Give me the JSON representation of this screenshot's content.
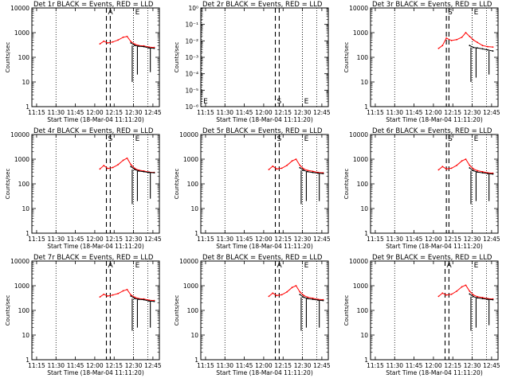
{
  "figure": {
    "xlabel": "Start Time (18-Mar-04 11:11:20)",
    "ylabel": "Counts/sec",
    "series": [
      {
        "name": "Events",
        "color": "#000000"
      },
      {
        "name": "LLD",
        "color": "#ff0000"
      }
    ],
    "x_tick_labels": [
      "11:15",
      "11:30",
      "11:45",
      "12:00",
      "12:15",
      "12:30",
      "12:45"
    ],
    "marker_labels": {
      "attenuator": "A",
      "saa": "S",
      "eclipse": "E"
    }
  },
  "chart_data": [
    {
      "type": "line",
      "title": "Det 1r BLACK = Events, RED = LLD",
      "xlabel": "Start Time (18-Mar-04 11:11:20)",
      "ylabel": "Counts/sec",
      "xlim": [
        "11:11:20",
        "12:50"
      ],
      "ylim": [
        1,
        10000
      ],
      "yscale": "log",
      "y_tick_labels": [
        "1",
        "10",
        "100",
        "1000",
        "10000"
      ],
      "x": [
        "12:04",
        "12:07",
        "12:10",
        "12:14",
        "12:18",
        "12:22",
        "12:25",
        "12:28",
        "12:31",
        "12:34",
        "12:38",
        "12:42",
        "12:46"
      ],
      "series": [
        {
          "name": "LLD",
          "values": [
            350,
            450,
            380,
            420,
            500,
            650,
            700,
            430,
            340,
            300,
            290,
            260,
            250
          ]
        },
        {
          "name": "Events",
          "values": [
            null,
            null,
            null,
            null,
            null,
            null,
            null,
            380,
            300,
            280,
            270,
            240,
            230
          ],
          "drops": [
            [
              "12:29",
              10
            ],
            [
              "12:33",
              20
            ],
            [
              "12:43",
              25
            ]
          ]
        }
      ],
      "markers": [
        {
          "label": "A",
          "times": [
            "12:09",
            "12:12"
          ]
        },
        {
          "label": "E",
          "times": [
            "12:30"
          ]
        }
      ]
    },
    {
      "type": "line",
      "title": "Det 2r BLACK = Events, RED = LLD",
      "xlabel": "Start Time (18-Mar-04 11:11:20)",
      "ylabel": "Counts/sec",
      "xlim": [
        "11:11:20",
        "12:50"
      ],
      "ylim": [
        1e-06,
        1.0
      ],
      "yscale": "log",
      "y_tick_labels": [
        "10⁻⁶",
        "10⁻⁵",
        "10⁻⁴",
        "10⁻³",
        "10⁻²",
        "10⁻¹",
        "10⁰"
      ],
      "x": [],
      "series": [],
      "markers": [
        {
          "label": "E",
          "times": [
            "11:12"
          ]
        },
        {
          "label": "S",
          "times": [
            "12:09",
            "12:12"
          ]
        },
        {
          "label": "E",
          "times": [
            "12:30"
          ]
        }
      ]
    },
    {
      "type": "line",
      "title": "Det 3r BLACK = Events, RED = LLD",
      "xlabel": "Start Time (18-Mar-04 11:11:20)",
      "ylabel": "Counts/sec",
      "xlim": [
        "11:11:20",
        "12:50"
      ],
      "ylim": [
        1,
        10000
      ],
      "yscale": "log",
      "y_tick_labels": [
        "1",
        "10",
        "100",
        "1000",
        "10000"
      ],
      "x": [
        "12:04",
        "12:07",
        "12:10",
        "12:14",
        "12:18",
        "12:22",
        "12:25",
        "12:28",
        "12:31",
        "12:34",
        "12:38",
        "12:42",
        "12:46"
      ],
      "series": [
        {
          "name": "LLD",
          "values": [
            230,
            300,
            600,
            480,
            520,
            650,
            1000,
            700,
            500,
            400,
            300,
            270,
            260
          ]
        },
        {
          "name": "Events",
          "values": [
            null,
            null,
            null,
            null,
            null,
            null,
            null,
            300,
            250,
            240,
            220,
            200,
            180
          ],
          "drops": [
            [
              "12:29",
              10
            ],
            [
              "12:33",
              15
            ],
            [
              "12:43",
              20
            ]
          ]
        }
      ],
      "markers": [
        {
          "label": "S",
          "times": [
            "12:10",
            "12:12"
          ]
        },
        {
          "label": "E",
          "times": [
            "12:30"
          ]
        }
      ]
    },
    {
      "type": "line",
      "title": "Det 4r BLACK = Events, RED = LLD",
      "xlabel": "Start Time (18-Mar-04 11:11:20)",
      "ylabel": "Counts/sec",
      "xlim": [
        "11:11:20",
        "12:50"
      ],
      "ylim": [
        1,
        10000
      ],
      "yscale": "log",
      "y_tick_labels": [
        "1",
        "10",
        "100",
        "1000",
        "10000"
      ],
      "x": [
        "12:04",
        "12:07",
        "12:10",
        "12:14",
        "12:18",
        "12:22",
        "12:25",
        "12:28",
        "12:31",
        "12:34",
        "12:38",
        "12:42",
        "12:46"
      ],
      "series": [
        {
          "name": "LLD",
          "values": [
            400,
            550,
            420,
            460,
            600,
            900,
            1100,
            600,
            420,
            360,
            330,
            300,
            290
          ]
        },
        {
          "name": "Events",
          "values": [
            null,
            null,
            null,
            null,
            null,
            null,
            null,
            500,
            380,
            330,
            310,
            290,
            280
          ],
          "drops": [
            [
              "12:29",
              15
            ],
            [
              "12:33",
              20
            ],
            [
              "12:43",
              25
            ]
          ]
        }
      ],
      "markers": [
        {
          "label": "S",
          "times": [
            "12:09",
            "12:12"
          ]
        },
        {
          "label": "E",
          "times": [
            "12:30"
          ]
        }
      ]
    },
    {
      "type": "line",
      "title": "Det 5r BLACK = Events, RED = LLD",
      "xlabel": "Start Time (18-Mar-04 11:11:20)",
      "ylabel": "Counts/sec",
      "xlim": [
        "11:11:20",
        "12:50"
      ],
      "ylim": [
        1,
        10000
      ],
      "yscale": "log",
      "y_tick_labels": [
        "1",
        "10",
        "100",
        "1000",
        "10000"
      ],
      "x": [
        "12:04",
        "12:07",
        "12:10",
        "12:14",
        "12:18",
        "12:22",
        "12:25",
        "12:28",
        "12:31",
        "12:34",
        "12:38",
        "12:42",
        "12:46"
      ],
      "series": [
        {
          "name": "LLD",
          "values": [
            380,
            520,
            400,
            430,
            560,
            850,
            1000,
            560,
            400,
            350,
            320,
            290,
            280
          ]
        },
        {
          "name": "Events",
          "values": [
            null,
            null,
            null,
            null,
            null,
            null,
            null,
            450,
            350,
            310,
            290,
            270,
            260
          ],
          "drops": [
            [
              "12:29",
              15
            ],
            [
              "12:33",
              20
            ],
            [
              "12:43",
              20
            ]
          ]
        }
      ],
      "markers": [
        {
          "label": "S",
          "times": [
            "12:09",
            "12:12"
          ]
        },
        {
          "label": "E",
          "times": [
            "12:30"
          ]
        }
      ]
    },
    {
      "type": "line",
      "title": "Det 6r BLACK = Events, RED = LLD",
      "xlabel": "Start Time (18-Mar-04 11:11:20)",
      "ylabel": "Counts/sec",
      "xlim": [
        "11:11:20",
        "12:50"
      ],
      "ylim": [
        1,
        10000
      ],
      "yscale": "log",
      "y_tick_labels": [
        "1",
        "10",
        "100",
        "1000",
        "10000"
      ],
      "x": [
        "12:04",
        "12:07",
        "12:10",
        "12:14",
        "12:18",
        "12:22",
        "12:25",
        "12:28",
        "12:31",
        "12:34",
        "12:38",
        "12:42",
        "12:46"
      ],
      "series": [
        {
          "name": "LLD",
          "values": [
            370,
            500,
            400,
            430,
            560,
            850,
            1000,
            560,
            400,
            340,
            310,
            280,
            270
          ]
        },
        {
          "name": "Events",
          "values": [
            null,
            null,
            null,
            null,
            null,
            null,
            null,
            440,
            340,
            300,
            280,
            260,
            250
          ],
          "drops": [
            [
              "12:29",
              15
            ],
            [
              "12:33",
              20
            ],
            [
              "12:43",
              20
            ]
          ]
        }
      ],
      "markers": [
        {
          "label": "S",
          "times": [
            "12:10",
            "12:12"
          ]
        },
        {
          "label": "E",
          "times": [
            "12:30"
          ]
        }
      ]
    },
    {
      "type": "line",
      "title": "Det 7r BLACK = Events, RED = LLD",
      "xlabel": "Start Time (18-Mar-04 11:11:20)",
      "ylabel": "Counts/sec",
      "xlim": [
        "11:11:20",
        "12:50"
      ],
      "ylim": [
        1,
        10000
      ],
      "yscale": "log",
      "y_tick_labels": [
        "1",
        "10",
        "100",
        "1000",
        "10000"
      ],
      "x": [
        "12:04",
        "12:07",
        "12:10",
        "12:14",
        "12:18",
        "12:22",
        "12:25",
        "12:28",
        "12:31",
        "12:34",
        "12:38",
        "12:42",
        "12:46"
      ],
      "series": [
        {
          "name": "LLD",
          "values": [
            350,
            450,
            380,
            420,
            480,
            620,
            700,
            420,
            340,
            300,
            290,
            260,
            250
          ]
        },
        {
          "name": "Events",
          "values": [
            null,
            null,
            null,
            null,
            null,
            null,
            null,
            380,
            300,
            280,
            270,
            240,
            230
          ],
          "drops": [
            [
              "12:29",
              15
            ],
            [
              "12:33",
              20
            ],
            [
              "12:43",
              20
            ]
          ]
        }
      ],
      "markers": [
        {
          "label": "A",
          "times": [
            "12:09",
            "12:12"
          ]
        },
        {
          "label": "E",
          "times": [
            "12:30"
          ]
        }
      ]
    },
    {
      "type": "line",
      "title": "Det 8r BLACK = Events, RED = LLD",
      "xlabel": "Start Time (18-Mar-04 11:11:20)",
      "ylabel": "Counts/sec",
      "xlim": [
        "11:11:20",
        "12:50"
      ],
      "ylim": [
        1,
        10000
      ],
      "yscale": "log",
      "y_tick_labels": [
        "1",
        "10",
        "100",
        "1000",
        "10000"
      ],
      "x": [
        "12:04",
        "12:07",
        "12:10",
        "12:14",
        "12:18",
        "12:22",
        "12:25",
        "12:28",
        "12:31",
        "12:34",
        "12:38",
        "12:42",
        "12:46"
      ],
      "series": [
        {
          "name": "LLD",
          "values": [
            370,
            500,
            400,
            430,
            560,
            850,
            1000,
            560,
            400,
            340,
            310,
            280,
            270
          ]
        },
        {
          "name": "Events",
          "values": [
            null,
            null,
            null,
            null,
            null,
            null,
            null,
            440,
            340,
            300,
            280,
            260,
            250
          ],
          "drops": [
            [
              "12:29",
              15
            ],
            [
              "12:33",
              20
            ],
            [
              "12:43",
              20
            ]
          ]
        }
      ],
      "markers": [
        {
          "label": "A",
          "times": [
            "12:09",
            "12:12"
          ]
        },
        {
          "label": "E",
          "times": [
            "12:30"
          ]
        }
      ]
    },
    {
      "type": "line",
      "title": "Det 9r BLACK = Events, RED = LLD",
      "xlabel": "Start Time (18-Mar-04 11:11:20)",
      "ylabel": "Counts/sec",
      "xlim": [
        "11:11:20",
        "12:50"
      ],
      "ylim": [
        1,
        10000
      ],
      "yscale": "log",
      "y_tick_labels": [
        "1",
        "10",
        "100",
        "1000",
        "10000"
      ],
      "x": [
        "12:04",
        "12:07",
        "12:10",
        "12:14",
        "12:18",
        "12:22",
        "12:25",
        "12:28",
        "12:31",
        "12:34",
        "12:38",
        "12:42",
        "12:46"
      ],
      "series": [
        {
          "name": "LLD",
          "values": [
            370,
            500,
            420,
            450,
            600,
            900,
            1050,
            600,
            420,
            360,
            330,
            300,
            290
          ]
        },
        {
          "name": "Events",
          "values": [
            null,
            null,
            null,
            null,
            null,
            null,
            null,
            460,
            360,
            320,
            300,
            280,
            270
          ],
          "drops": [
            [
              "12:29",
              15
            ],
            [
              "12:33",
              20
            ],
            [
              "12:43",
              25
            ]
          ]
        }
      ],
      "markers": [
        {
          "label": "A",
          "times": [
            "12:09",
            "12:12"
          ]
        },
        {
          "label": "E",
          "times": [
            "12:30"
          ]
        }
      ]
    }
  ]
}
